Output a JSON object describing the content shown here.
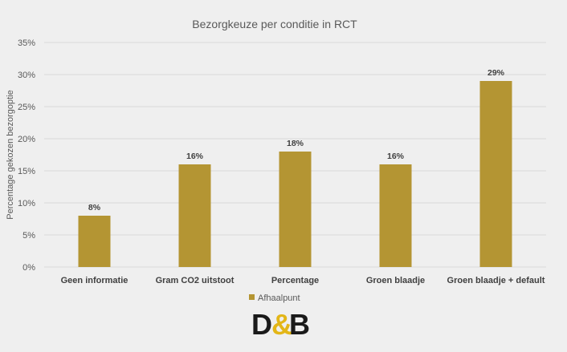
{
  "chart_data": {
    "type": "bar",
    "title": "Bezorgkeuze per conditie in RCT",
    "ylabel": "Percentage gekozen bezorgoptie",
    "xlabel": "",
    "categories": [
      "Geen informatie",
      "Gram CO2 uitstoot",
      "Percentage",
      "Groen blaadje",
      "Groen blaadje + default"
    ],
    "series": [
      {
        "name": "Afhaalpunt",
        "values": [
          8,
          16,
          18,
          16,
          29
        ],
        "data_labels": [
          "8%",
          "16%",
          "18%",
          "16%",
          "29%"
        ],
        "color": "#b49533"
      }
    ],
    "ylim": [
      0,
      35
    ],
    "yticks": [
      0,
      5,
      10,
      15,
      20,
      25,
      30,
      35
    ],
    "ytick_labels": [
      "0%",
      "5%",
      "10%",
      "15%",
      "20%",
      "25%",
      "30%",
      "35%"
    ],
    "grid": true,
    "legend_position": "bottom"
  },
  "logo": {
    "text_left": "D",
    "text_amp": "&",
    "text_right": "B",
    "color_main": "#1a1a1a",
    "color_accent": "#e3b617"
  }
}
